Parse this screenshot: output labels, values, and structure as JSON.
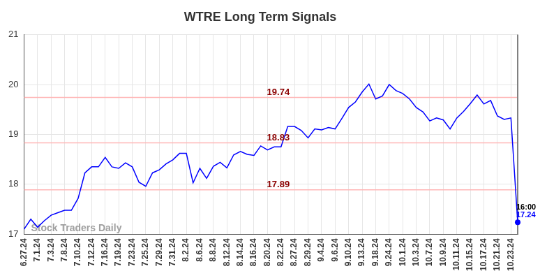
{
  "chart_data": {
    "type": "line",
    "title": "WTRE Long Term Signals",
    "categories": [
      "6.27.24",
      null,
      "7.1.24",
      null,
      "7.3.24",
      null,
      "7.8.24",
      null,
      "7.10.24",
      null,
      "7.12.24",
      null,
      "7.16.24",
      null,
      "7.19.24",
      null,
      "7.23.24",
      null,
      "7.25.24",
      null,
      "7.29.24",
      null,
      "7.31.24",
      null,
      "8.2.24",
      null,
      "8.6.24",
      null,
      "8.8.24",
      null,
      "8.12.24",
      null,
      "8.14.24",
      null,
      "8.16.24",
      null,
      "8.20.24",
      null,
      "8.22.24",
      null,
      "8.27.24",
      null,
      "8.29.24",
      null,
      "9.4.24",
      null,
      "9.6.24",
      null,
      "9.10.24",
      null,
      "9.13.24",
      null,
      "9.18.24",
      null,
      "9.24.24",
      null,
      "10.1.24",
      null,
      "10.3.24",
      null,
      "10.7.24",
      null,
      "10.9.24",
      null,
      "10.11.24",
      null,
      "10.15.24",
      null,
      "10.17.24",
      null,
      "10.21.24",
      null,
      "10.23.24",
      null
    ],
    "values": [
      17.1,
      17.3,
      17.14,
      17.27,
      17.38,
      17.43,
      17.48,
      17.48,
      17.72,
      18.23,
      18.35,
      18.35,
      18.54,
      18.35,
      18.32,
      18.43,
      18.35,
      18.04,
      17.96,
      18.23,
      18.29,
      18.41,
      18.49,
      18.62,
      18.62,
      18.03,
      18.32,
      18.12,
      18.36,
      18.44,
      18.33,
      18.59,
      18.66,
      18.6,
      18.58,
      18.77,
      18.69,
      18.75,
      18.75,
      19.16,
      19.16,
      19.08,
      18.93,
      19.11,
      19.09,
      19.14,
      19.11,
      19.32,
      19.54,
      19.65,
      19.85,
      20.01,
      19.71,
      19.77,
      20.0,
      19.88,
      19.82,
      19.71,
      19.54,
      19.45,
      19.27,
      19.33,
      19.29,
      19.11,
      19.33,
      19.46,
      19.62,
      19.79,
      19.61,
      19.68,
      19.37,
      19.3,
      19.33,
      17.24
    ],
    "color": "#0000ff",
    "ylim": [
      17,
      21
    ],
    "yticks": [
      17,
      18,
      19,
      20,
      21
    ],
    "grid": true,
    "reference_lines": [
      19.74,
      18.83,
      17.89
    ],
    "last_point_time": "16:00",
    "watermark": "Stock Traders Daily"
  }
}
